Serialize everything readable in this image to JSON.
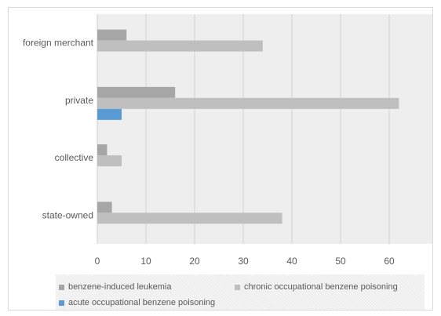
{
  "chart_data": {
    "type": "bar",
    "orientation": "horizontal",
    "categories": [
      "foreign merchant",
      "private",
      "collective",
      "state-owned"
    ],
    "series": [
      {
        "name": "benzene-induced leukemia",
        "color": "#a6a6a6",
        "values": [
          6,
          16,
          2,
          3
        ]
      },
      {
        "name": "chronic occupational benzene poisoning",
        "color": "#bfbfbf",
        "values": [
          34,
          62,
          5,
          38
        ]
      },
      {
        "name": "acute occupational benzene poisoning",
        "color": "#5b9bd5",
        "values": [
          0,
          5,
          0,
          0
        ]
      }
    ],
    "xlim": [
      0,
      70
    ],
    "xticks": [
      "0",
      "10",
      "20",
      "30",
      "40",
      "50",
      "60",
      "70"
    ],
    "grid": true,
    "legend_position": "bottom"
  }
}
